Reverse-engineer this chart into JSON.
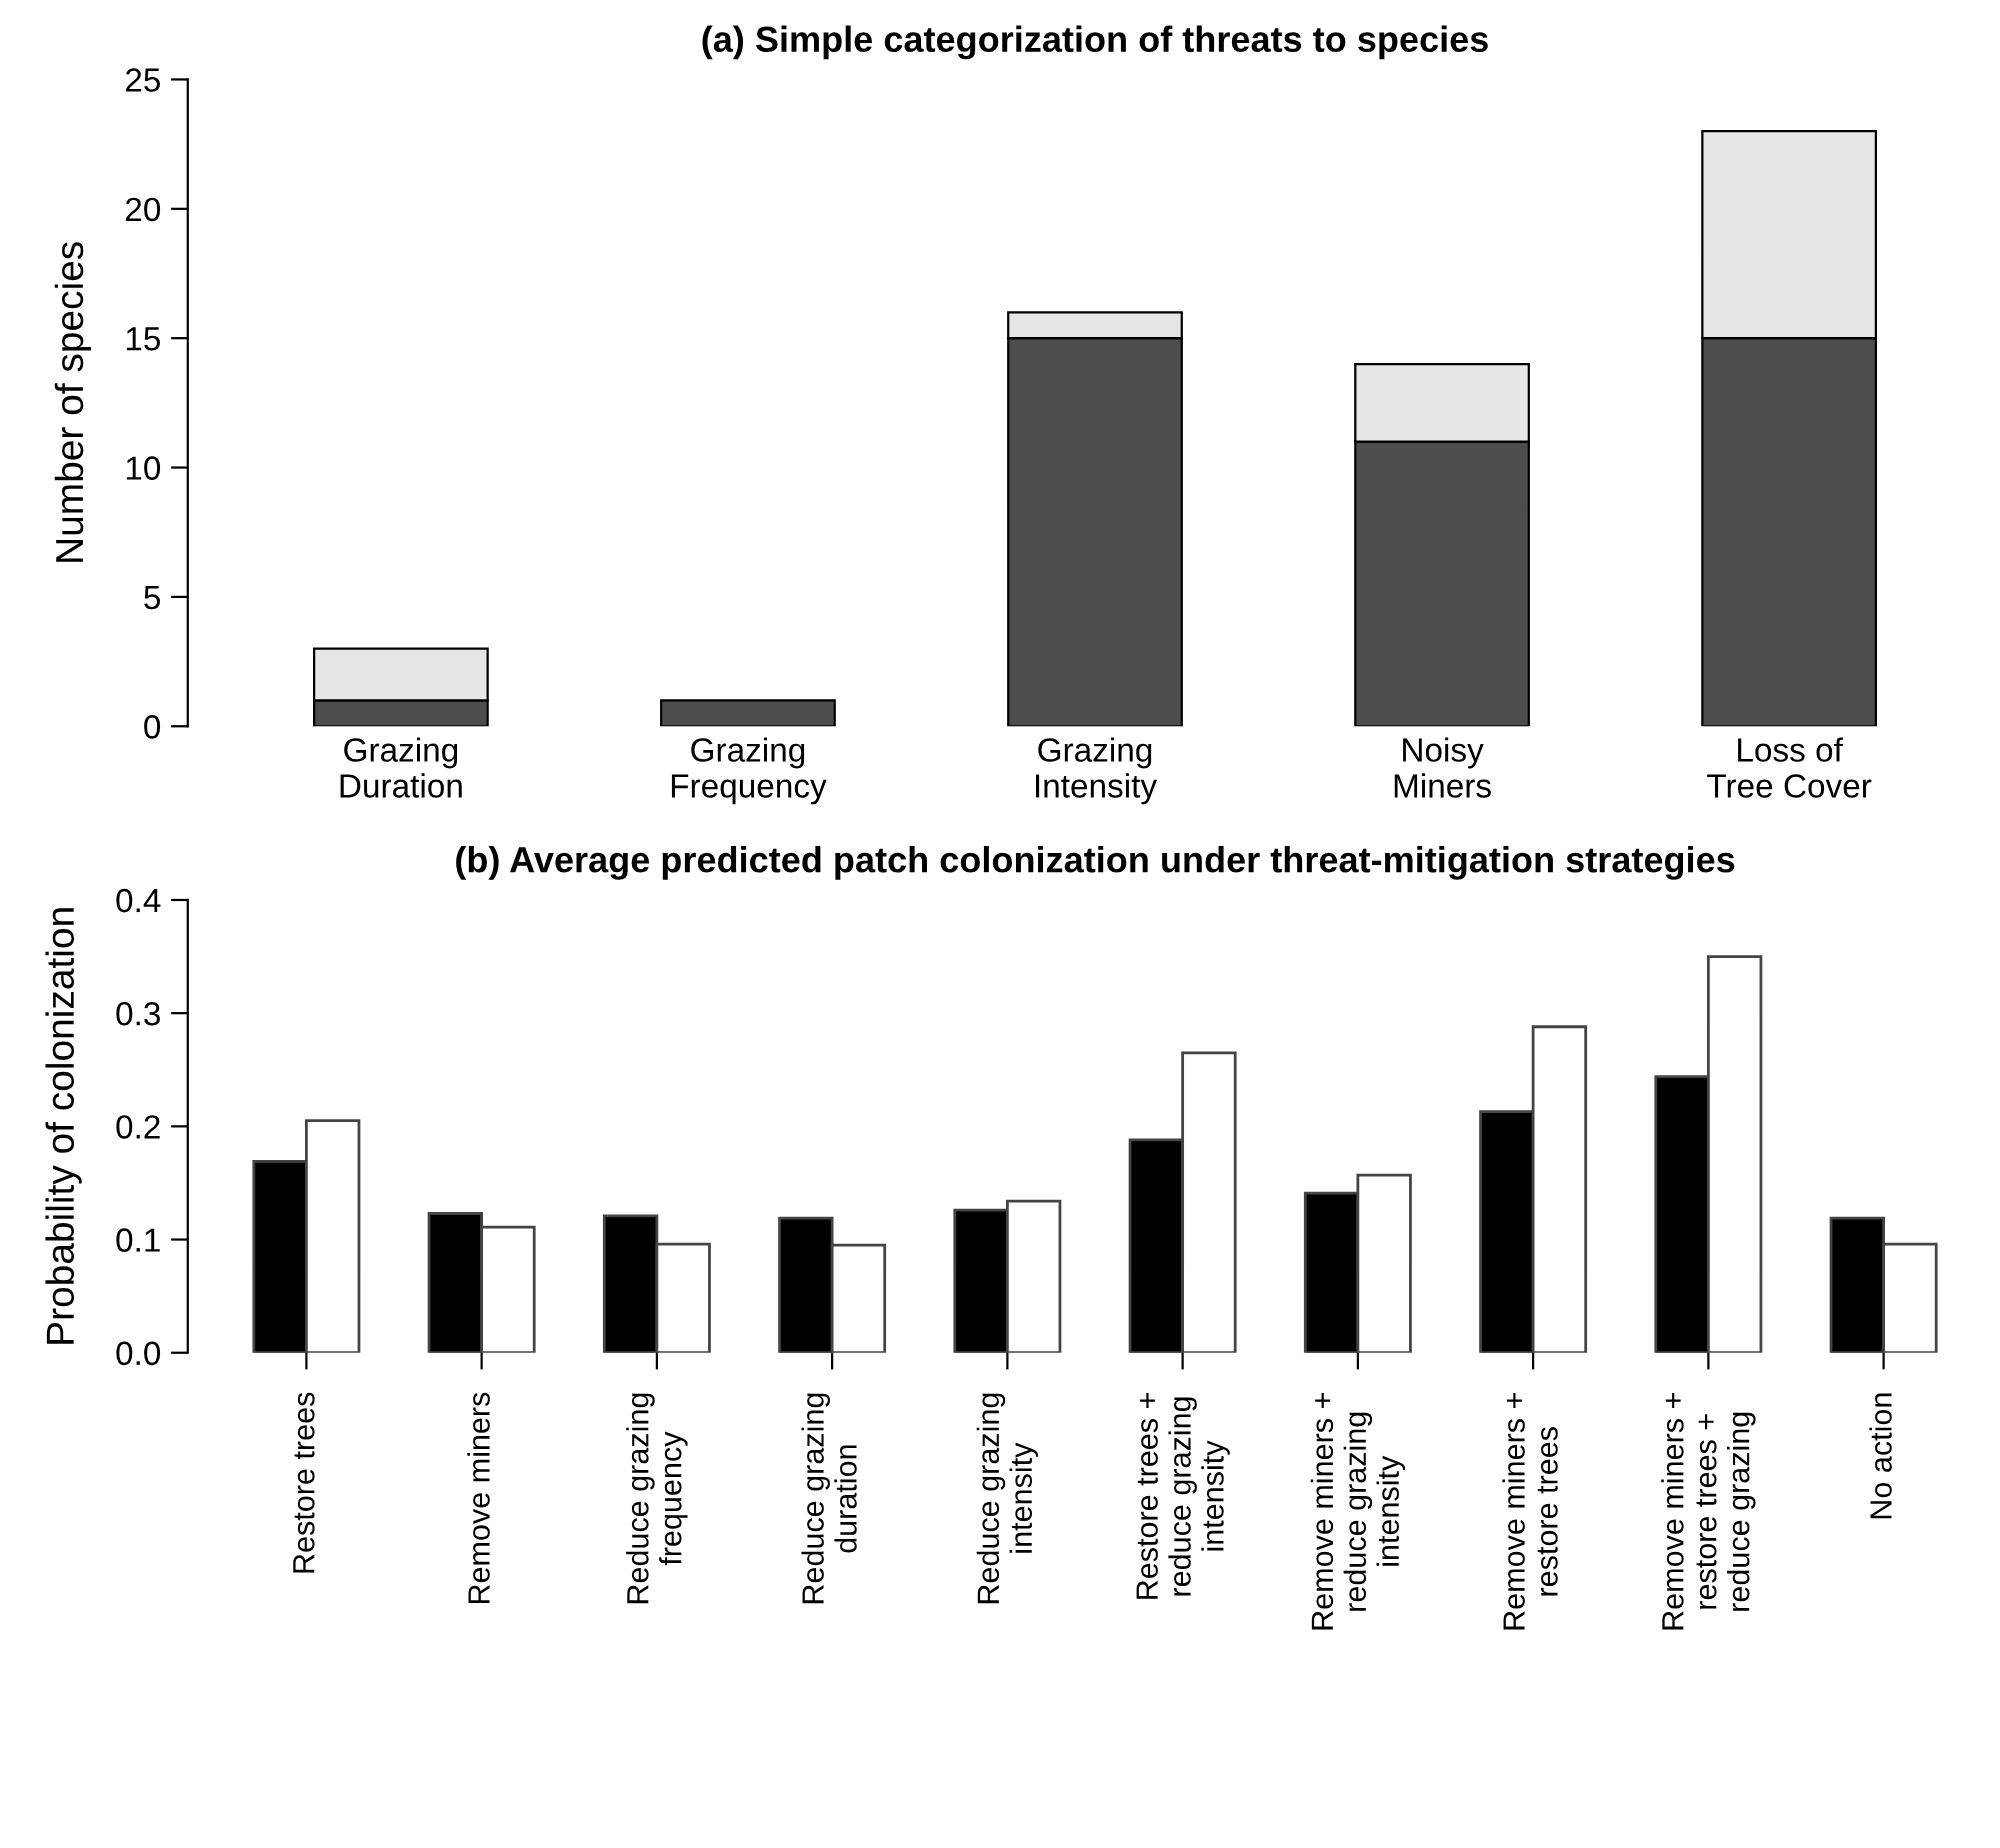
{
  "chart_data": [
    {
      "type": "bar",
      "title": "(a) Simple categorization of threats to species",
      "ylabel": "Number of species",
      "categories": [
        "Grazing\nDuration",
        "Grazing\nFrequency",
        "Grazing\nIntensity",
        "Noisy\nMiners",
        "Loss of\nTree Cover"
      ],
      "stacked": true,
      "series": [
        {
          "color": "#4d4d4d",
          "values": [
            1,
            1,
            15,
            11,
            15
          ]
        },
        {
          "color": "#e6e6e6",
          "values": [
            2,
            0,
            1,
            3,
            8
          ]
        }
      ],
      "ylim": [
        0,
        25
      ],
      "yticks": [
        0,
        5,
        10,
        15,
        20,
        25
      ],
      "grid": false
    },
    {
      "type": "bar",
      "title": "(b) Average predicted patch colonization under threat-mitigation strategies",
      "ylabel": "Probability of colonization",
      "categories": [
        "Restore trees",
        "Remove miners",
        "Reduce grazing\nfrequency",
        "Reduce grazing\nduration",
        "Reduce grazing\nintensity",
        "Restore trees +\nreduce grazing\nintensity",
        "Remove miners +\nreduce grazing\nintensity",
        "Remove miners +\nrestore trees",
        "Remove miners +\nrestore trees +\nreduce grazing",
        "No action"
      ],
      "series": [
        {
          "color": "#000000",
          "values": [
            0.169,
            0.123,
            0.121,
            0.119,
            0.126,
            0.188,
            0.141,
            0.213,
            0.244,
            0.119
          ]
        },
        {
          "color": "#ffffff",
          "values": [
            0.205,
            0.111,
            0.096,
            0.095,
            0.134,
            0.265,
            0.157,
            0.288,
            0.35,
            0.096
          ]
        }
      ],
      "ylim": [
        0,
        0.4
      ],
      "yticks": [
        {
          "value": 0,
          "label": "0.0"
        },
        0.1,
        0.2,
        0.3,
        0.4
      ],
      "grid": false
    }
  ]
}
